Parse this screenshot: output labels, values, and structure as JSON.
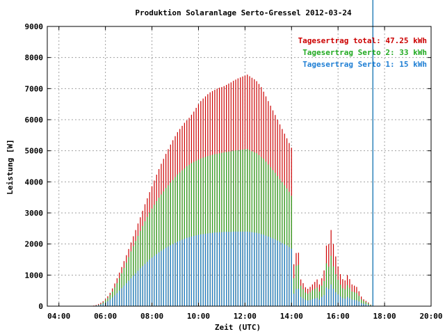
{
  "chart_data": {
    "type": "bar",
    "stacked": true,
    "title": "Produktion Solaranlage Serto-Gressel 2012-03-24",
    "xlabel": "Zeit (UTC)",
    "ylabel": "Leistung [W]",
    "ylim": [
      0,
      9000
    ],
    "xlim_hours": [
      3.5,
      20.0
    ],
    "grid": true,
    "legend_position": "top-right",
    "x_tick_labels": [
      "04:00",
      "06:00",
      "08:00",
      "10:00",
      "12:00",
      "14:00",
      "16:00",
      "18:00",
      "20:00"
    ],
    "x_tick_hours": [
      4,
      6,
      8,
      10,
      12,
      14,
      16,
      18,
      20
    ],
    "y_tick_labels": [
      "0",
      "1000",
      "2000",
      "3000",
      "4000",
      "5000",
      "6000",
      "7000",
      "8000",
      "9000"
    ],
    "y_tick_values": [
      0,
      1000,
      2000,
      3000,
      4000,
      5000,
      6000,
      7000,
      8000,
      9000
    ],
    "legend": [
      {
        "text": "Tagesertrag total: 47.25 kWh",
        "color": "#cc0000"
      },
      {
        "text": "Tagesertrag Serto 2: 33 kWh",
        "color": "#22aa22"
      },
      {
        "text": "Tagesertrag Serto 1: 15 kWh",
        "color": "#1f7fd4"
      }
    ],
    "series": [
      {
        "name": "Serto 1",
        "color": "#1f7fd4"
      },
      {
        "name": "Serto 2",
        "color": "#22aa22"
      },
      {
        "name": "total",
        "color": "#cc0000"
      }
    ],
    "time_hours": [
      5.5,
      5.6,
      5.7,
      5.8,
      5.9,
      6.0,
      6.1,
      6.2,
      6.3,
      6.4,
      6.5,
      6.6,
      6.7,
      6.8,
      6.9,
      7.0,
      7.1,
      7.2,
      7.3,
      7.4,
      7.5,
      7.6,
      7.7,
      7.8,
      7.9,
      8.0,
      8.1,
      8.2,
      8.3,
      8.4,
      8.5,
      8.6,
      8.7,
      8.8,
      8.9,
      9.0,
      9.1,
      9.2,
      9.3,
      9.4,
      9.5,
      9.6,
      9.7,
      9.8,
      9.9,
      10.0,
      10.1,
      10.2,
      10.3,
      10.4,
      10.5,
      10.6,
      10.7,
      10.8,
      10.9,
      11.0,
      11.1,
      11.2,
      11.3,
      11.4,
      11.5,
      11.6,
      11.7,
      11.8,
      11.9,
      12.0,
      12.1,
      12.2,
      12.3,
      12.4,
      12.5,
      12.6,
      12.7,
      12.8,
      12.9,
      13.0,
      13.1,
      13.2,
      13.3,
      13.4,
      13.5,
      13.6,
      13.7,
      13.8,
      13.9,
      14.0,
      14.1,
      14.2,
      14.3,
      14.4,
      14.5,
      14.6,
      14.7,
      14.8,
      14.9,
      15.0,
      15.1,
      15.2,
      15.3,
      15.4,
      15.5,
      15.6,
      15.7,
      15.8,
      15.9,
      16.0,
      16.1,
      16.2,
      16.3,
      16.4,
      16.5,
      16.6,
      16.7,
      16.8,
      16.9,
      17.0,
      17.1,
      17.2,
      17.3,
      17.4,
      17.5
    ],
    "serto1": [
      10,
      20,
      30,
      50,
      80,
      120,
      160,
      220,
      280,
      350,
      420,
      500,
      580,
      660,
      740,
      820,
      900,
      980,
      1060,
      1140,
      1220,
      1290,
      1360,
      1430,
      1500,
      1560,
      1620,
      1680,
      1730,
      1780,
      1830,
      1880,
      1920,
      1960,
      2000,
      2040,
      2080,
      2110,
      2140,
      2170,
      2200,
      2220,
      2240,
      2260,
      2280,
      2300,
      2310,
      2320,
      2330,
      2340,
      2350,
      2360,
      2370,
      2370,
      2380,
      2380,
      2390,
      2390,
      2390,
      2390,
      2400,
      2400,
      2400,
      2400,
      2400,
      2400,
      2400,
      2390,
      2380,
      2370,
      2360,
      2340,
      2320,
      2300,
      2270,
      2240,
      2210,
      2180,
      2150,
      2110,
      2070,
      2030,
      1990,
      1950,
      1900,
      1850,
      400,
      550,
      560,
      300,
      250,
      200,
      180,
      200,
      230,
      250,
      270,
      210,
      300,
      360,
      600,
      550,
      700,
      560,
      450,
      380,
      310,
      260,
      240,
      300,
      260,
      210,
      200,
      190,
      150,
      100,
      80,
      60,
      40,
      20
    ],
    "serto2": [
      0,
      0,
      10,
      20,
      40,
      70,
      100,
      140,
      190,
      250,
      320,
      400,
      480,
      570,
      660,
      760,
      860,
      950,
      1040,
      1120,
      1200,
      1290,
      1370,
      1440,
      1510,
      1580,
      1640,
      1700,
      1760,
      1810,
      1860,
      1920,
      1970,
      2020,
      2060,
      2110,
      2160,
      2190,
      2230,
      2260,
      2300,
      2330,
      2360,
      2380,
      2400,
      2420,
      2440,
      2460,
      2470,
      2490,
      2500,
      2510,
      2520,
      2530,
      2540,
      2550,
      2560,
      2570,
      2580,
      2590,
      2600,
      2610,
      2620,
      2630,
      2640,
      2650,
      2660,
      2630,
      2600,
      2580,
      2560,
      2520,
      2480,
      2440,
      2380,
      2320,
      2260,
      2200,
      2140,
      2080,
      2020,
      1960,
      1900,
      1840,
      1780,
      1700,
      500,
      750,
      770,
      360,
      300,
      240,
      220,
      250,
      280,
      310,
      330,
      260,
      360,
      450,
      780,
      720,
      920,
      720,
      580,
      470,
      380,
      320,
      300,
      380,
      330,
      260,
      250,
      230,
      180,
      120,
      90,
      70,
      50,
      20
    ],
    "total": [
      20,
      40,
      70,
      110,
      160,
      230,
      320,
      430,
      570,
      730,
      900,
      1080,
      1260,
      1450,
      1640,
      1840,
      2050,
      2250,
      2450,
      2660,
      2860,
      3070,
      3280,
      3470,
      3670,
      3860,
      4040,
      4230,
      4410,
      4580,
      4740,
      4900,
      5050,
      5200,
      5340,
      5470,
      5600,
      5700,
      5800,
      5900,
      5980,
      6060,
      6160,
      6260,
      6380,
      6500,
      6600,
      6680,
      6750,
      6820,
      6880,
      6920,
      6960,
      7000,
      7030,
      7050,
      7080,
      7120,
      7160,
      7200,
      7250,
      7290,
      7330,
      7360,
      7390,
      7420,
      7450,
      7400,
      7350,
      7300,
      7240,
      7150,
      7050,
      6900,
      6750,
      6600,
      6450,
      6300,
      6150,
      6000,
      5850,
      5700,
      5550,
      5400,
      5250,
      5100,
      1350,
      1710,
      1720,
      860,
      740,
      610,
      560,
      620,
      700,
      780,
      860,
      700,
      900,
      1150,
      1950,
      2000,
      2450,
      2000,
      1600,
      1280,
      1030,
      870,
      830,
      1000,
      870,
      700,
      660,
      620,
      480,
      310,
      220,
      170,
      120,
      50
    ],
    "y_axis_max": 9000
  }
}
